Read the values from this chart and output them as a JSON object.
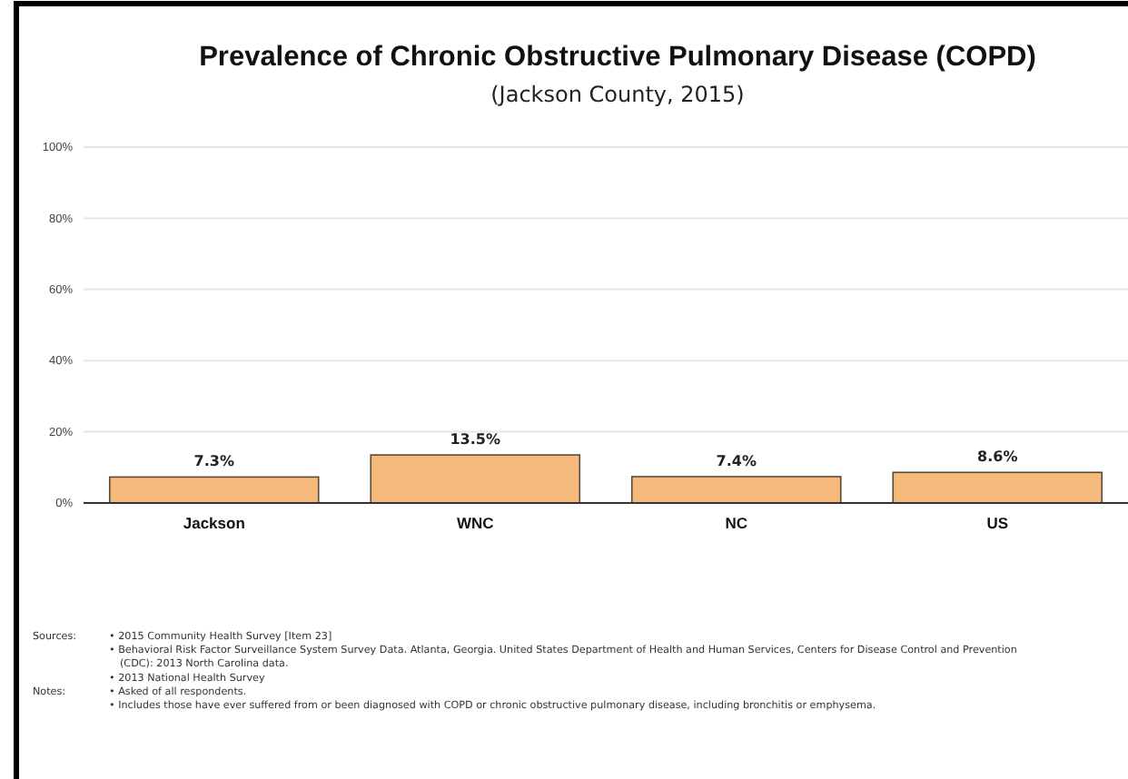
{
  "chart_data": {
    "type": "bar",
    "title": "Prevalence of Chronic Obstructive Pulmonary Disease (COPD)",
    "subtitle": "(Jackson County, 2015)",
    "categories": [
      "Jackson",
      "WNC",
      "NC",
      "US"
    ],
    "values": [
      7.3,
      13.5,
      7.4,
      8.6
    ],
    "value_labels": [
      "7.3%",
      "13.5%",
      "7.4%",
      "8.6%"
    ],
    "color": "#f5b97b",
    "ylim": [
      0,
      100
    ],
    "yticks": [
      {
        "value": 0,
        "label": "0%"
      },
      {
        "value": 20,
        "label": "20%"
      },
      {
        "value": 40,
        "label": "40%"
      },
      {
        "value": 60,
        "label": "60%"
      },
      {
        "value": 80,
        "label": "80%"
      },
      {
        "value": 100,
        "label": "100%"
      }
    ],
    "grid": "y",
    "annotations": [
      "Sources:",
      "• 2015 Community Health Survey [Item 23]",
      "• Behavioral Risk Factor Surveillance System Survey Data.  Atlanta, Georgia.  United States Department of Health and Human Services, Centers for Disease Control and Prevention (CDC): 2013 North Carolina data.",
      "• 2013 National Health Survey",
      "Notes:",
      "• Asked of all respondents.",
      "• Includes those have ever suffered from or been diagnosed with COPD or chronic obstructive pulmonary disease, including bronchitis or emphysema."
    ]
  }
}
